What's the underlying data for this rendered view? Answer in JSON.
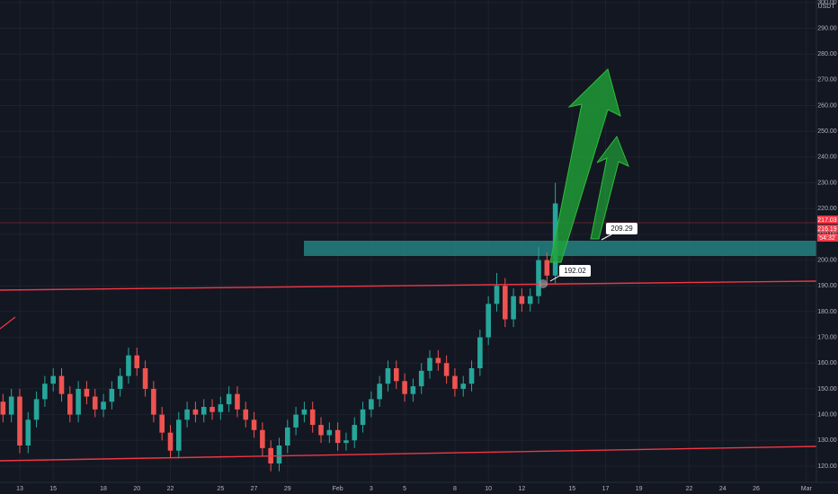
{
  "chart_data": {
    "type": "candlestick",
    "y_axis_label": "USDT",
    "up_color": "#26a69a",
    "down_color": "#ef5350",
    "grid": true,
    "xlim": [
      -1.18,
      47.6
    ],
    "ylim": [
      113.7,
      301
    ],
    "xticks": [
      {
        "value": 0,
        "label": "13"
      },
      {
        "value": 2,
        "label": "15"
      },
      {
        "value": 5,
        "label": "18"
      },
      {
        "value": 7,
        "label": "20"
      },
      {
        "value": 9,
        "label": "22"
      },
      {
        "value": 12,
        "label": "25"
      },
      {
        "value": 14,
        "label": "27"
      },
      {
        "value": 16,
        "label": "29"
      },
      {
        "value": 19,
        "label": "Feb"
      },
      {
        "value": 21,
        "label": "3"
      },
      {
        "value": 23,
        "label": "5"
      },
      {
        "value": 26,
        "label": "8"
      },
      {
        "value": 28,
        "label": "10"
      },
      {
        "value": 30,
        "label": "12"
      },
      {
        "value": 33,
        "label": "15"
      },
      {
        "value": 35,
        "label": "17"
      },
      {
        "value": 37,
        "label": "19"
      },
      {
        "value": 40,
        "label": "22"
      },
      {
        "value": 42,
        "label": "24"
      },
      {
        "value": 44,
        "label": "26"
      },
      {
        "value": 47,
        "label": "Mar"
      }
    ],
    "yticks": [
      {
        "value": 120,
        "label": "120.00"
      },
      {
        "value": 130,
        "label": "130.00"
      },
      {
        "value": 140,
        "label": "140.00"
      },
      {
        "value": 150,
        "label": "150.00"
      },
      {
        "value": 160,
        "label": "160.00"
      },
      {
        "value": 170,
        "label": "170.00"
      },
      {
        "value": 180,
        "label": "180.00"
      },
      {
        "value": 190,
        "label": "190.00"
      },
      {
        "value": 200,
        "label": "200.00"
      },
      {
        "value": 210,
        "label": "210.00"
      },
      {
        "value": 220,
        "label": "220.00"
      },
      {
        "value": 230,
        "label": "230.00"
      },
      {
        "value": 240,
        "label": "240.00"
      },
      {
        "value": 250,
        "label": "250.00"
      },
      {
        "value": 260,
        "label": "260.00"
      },
      {
        "value": 270,
        "label": "270.00"
      },
      {
        "value": 280,
        "label": "280.00"
      },
      {
        "value": 290,
        "label": "290.00"
      },
      {
        "value": 300,
        "label": "300.00"
      }
    ],
    "x": [
      -1,
      -0.5,
      0,
      0.5,
      1,
      1.5,
      2,
      2.5,
      3,
      3.5,
      4,
      4.5,
      5,
      5.5,
      6,
      6.5,
      7,
      7.5,
      8,
      8.5,
      9,
      9.5,
      10,
      10.5,
      11,
      11.5,
      12,
      12.5,
      13,
      13.5,
      14,
      14.5,
      15,
      15.5,
      16,
      16.5,
      17,
      17.5,
      18,
      18.5,
      19,
      19.5,
      20,
      20.5,
      21,
      21.5,
      22,
      22.5,
      23,
      23.5,
      24,
      24.5,
      25,
      25.5,
      26,
      26.5,
      27,
      27.5,
      28,
      28.5,
      29,
      29.5,
      30,
      30.5,
      31,
      31.5,
      32
    ],
    "open": [
      145,
      140,
      147,
      128,
      138,
      146,
      152,
      155,
      148,
      140,
      150,
      147,
      142,
      145,
      150,
      155,
      163,
      158,
      150,
      140,
      133,
      126,
      138,
      142,
      140,
      143,
      141,
      144,
      148,
      142,
      138,
      134,
      127,
      121,
      128,
      135,
      140,
      142,
      136,
      132,
      134,
      129,
      130,
      136,
      142,
      146,
      152,
      158,
      153,
      148,
      151,
      157,
      162,
      160,
      155,
      150,
      152,
      158,
      170,
      183,
      190,
      177,
      186,
      183,
      186,
      200,
      194
    ],
    "high": [
      148,
      150,
      150,
      141,
      149,
      155,
      158,
      158,
      151,
      153,
      153,
      150,
      148,
      153,
      158,
      166,
      166,
      161,
      153,
      143,
      136,
      141,
      145,
      145,
      146,
      146,
      147,
      151,
      151,
      145,
      141,
      137,
      130,
      131,
      138,
      143,
      145,
      145,
      139,
      137,
      137,
      133,
      139,
      145,
      149,
      155,
      161,
      161,
      156,
      154,
      160,
      165,
      165,
      163,
      158,
      155,
      161,
      173,
      186,
      195,
      193,
      189,
      189,
      189,
      205,
      203,
      230
    ],
    "low": [
      137,
      137,
      125,
      125,
      135,
      143,
      149,
      145,
      137,
      137,
      144,
      139,
      139,
      142,
      147,
      152,
      155,
      147,
      137,
      130,
      123,
      123,
      135,
      137,
      137,
      138,
      138,
      141,
      139,
      135,
      131,
      124,
      118,
      118,
      125,
      132,
      137,
      133,
      129,
      129,
      126,
      126,
      127,
      133,
      139,
      143,
      149,
      150,
      145,
      145,
      148,
      154,
      157,
      152,
      147,
      147,
      149,
      155,
      167,
      180,
      174,
      174,
      180,
      180,
      183,
      190,
      191
    ],
    "close": [
      140,
      147,
      128,
      138,
      146,
      152,
      155,
      148,
      140,
      150,
      147,
      142,
      145,
      150,
      155,
      163,
      158,
      150,
      140,
      133,
      126,
      138,
      142,
      140,
      143,
      141,
      144,
      148,
      142,
      138,
      134,
      127,
      121,
      128,
      135,
      140,
      142,
      136,
      132,
      134,
      129,
      130,
      136,
      142,
      146,
      152,
      158,
      153,
      148,
      151,
      157,
      162,
      160,
      155,
      150,
      152,
      158,
      170,
      183,
      190,
      177,
      186,
      183,
      186,
      200,
      194,
      222
    ],
    "annotations": [
      "209.29",
      "192.02"
    ],
    "price_tags": [
      "217.03",
      "216.19",
      "54:32"
    ]
  }
}
